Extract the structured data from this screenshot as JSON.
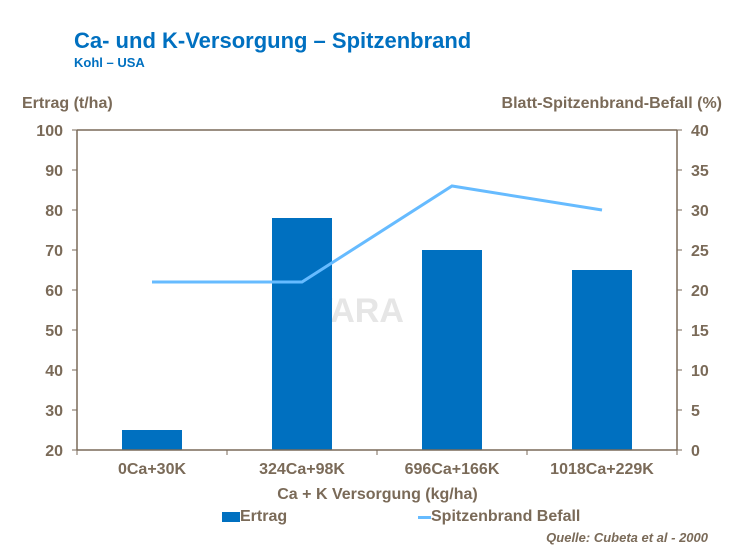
{
  "title": "Ca- und K-Versorgung – Spitzenbrand",
  "subtitle": "Kohl – USA",
  "source": "Quelle: Cubeta et al - 2000",
  "watermark": "VARA",
  "chart_data": {
    "type": "bar+line",
    "categories": [
      "0Ca+30K",
      "324Ca+98K",
      "696Ca+166K",
      "1018Ca+229K"
    ],
    "xlabel": "Ca + K Versorgung (kg/ha)",
    "ylabel": "Ertrag (t/ha)",
    "y2label": "Blatt-Spitzenbrand-Befall (%)",
    "ylim": [
      20,
      100
    ],
    "yticks": [
      20,
      30,
      40,
      50,
      60,
      70,
      80,
      90,
      100
    ],
    "y2lim": [
      0,
      40
    ],
    "y2ticks": [
      0,
      5,
      10,
      15,
      20,
      25,
      30,
      35,
      40
    ],
    "grid": false,
    "legend": "bottom",
    "series": [
      {
        "name": "Ertrag",
        "type": "bar",
        "axis": "left",
        "color": "#0070c0",
        "values": [
          25,
          78,
          70,
          65
        ]
      },
      {
        "name": "Spitzenbrand Befall",
        "type": "line",
        "axis": "right",
        "color": "#66bbff",
        "values": [
          21,
          21,
          33,
          30
        ]
      }
    ]
  }
}
